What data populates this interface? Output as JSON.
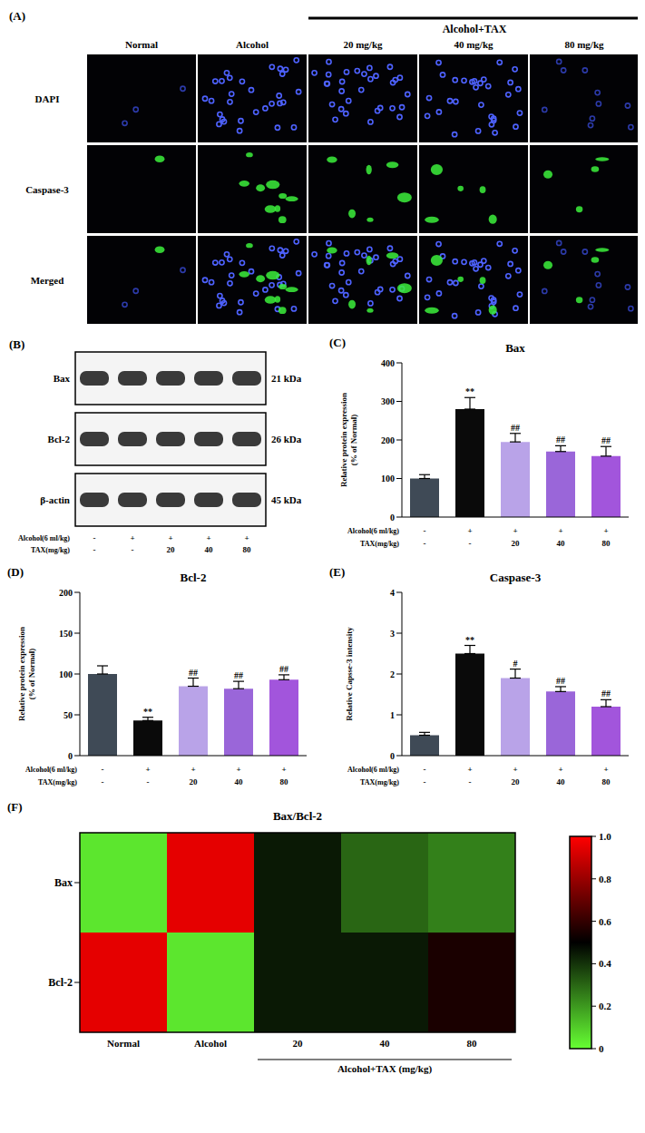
{
  "micrographs": {
    "panel_label": "(A)",
    "group_label": "Alcohol+TAX",
    "columns": [
      "Normal",
      "Alcohol",
      "20 mg/kg",
      "40 mg/kg",
      "80 mg/kg"
    ],
    "rows": [
      "DAPI",
      "Caspase-3",
      "Merged"
    ]
  },
  "western_blot": {
    "panel_label": "(B)",
    "bands": [
      {
        "name": "Bax",
        "size": "21 kDa"
      },
      {
        "name": "Bcl-2",
        "size": "26 kDa"
      },
      {
        "name": "β-actin",
        "size": "45 kDa"
      }
    ]
  },
  "treatments": {
    "rows": [
      {
        "label": "Alcohol(6 ml/kg)",
        "values": [
          "-",
          "+",
          "+",
          "+",
          "+"
        ]
      },
      {
        "label": "TAX(mg/kg)",
        "values": [
          "-",
          "-",
          "20",
          "40",
          "80"
        ]
      }
    ]
  },
  "chart_data": [
    {
      "type": "bar",
      "panel_label": "(C)",
      "title": "Bax",
      "y_label": "Relative protein expression (% of Normal)",
      "categories": [
        null,
        null,
        null,
        null,
        null
      ],
      "values": [
        100,
        280,
        195,
        170,
        158
      ],
      "errors": [
        10,
        30,
        22,
        15,
        25
      ],
      "significance": [
        null,
        "**",
        "##",
        "##",
        "##"
      ],
      "colors": [
        "#3f4a56",
        "#0a0a0a",
        "#b9a3e8",
        "#9a66d9",
        "#a255dc"
      ],
      "ylim": [
        0,
        400
      ],
      "yticks": [
        0,
        100,
        200,
        300,
        400
      ]
    },
    {
      "type": "bar",
      "panel_label": "(D)",
      "title": "Bcl-2",
      "y_label": "Relative protein expression (% of Normal)",
      "categories": [
        null,
        null,
        null,
        null,
        null
      ],
      "values": [
        100,
        43,
        85,
        82,
        93
      ],
      "errors": [
        10,
        4,
        10,
        9,
        6
      ],
      "significance": [
        null,
        "**",
        "##",
        "##",
        "##"
      ],
      "colors": [
        "#3f4a56",
        "#0a0a0a",
        "#b9a3e8",
        "#9a66d9",
        "#a255dc"
      ],
      "ylim": [
        0,
        200
      ],
      "yticks": [
        0,
        50,
        100,
        150,
        200
      ]
    },
    {
      "type": "bar",
      "panel_label": "(E)",
      "title": "Caspase-3",
      "y_label": "Relative Capsse-3 intensity",
      "categories": [
        null,
        null,
        null,
        null,
        null
      ],
      "values": [
        0.5,
        2.5,
        1.9,
        1.57,
        1.2
      ],
      "errors": [
        0.07,
        0.2,
        0.22,
        0.12,
        0.17
      ],
      "significance": [
        null,
        "**",
        "#",
        "##",
        "##"
      ],
      "colors": [
        "#3f4a56",
        "#0a0a0a",
        "#b9a3e8",
        "#9a66d9",
        "#a255dc"
      ],
      "ylim": [
        0,
        4
      ],
      "yticks": [
        0,
        1,
        2,
        3,
        4
      ]
    },
    {
      "type": "heatmap",
      "panel_label": "(F)",
      "title": "Bax/Bcl-2",
      "rows": [
        "Bax",
        "Bcl-2"
      ],
      "columns": [
        "Normal",
        "Alcohol",
        "20",
        "40",
        "80"
      ],
      "group_label": "Alcohol+TAX (mg/kg)",
      "cells": [
        [
          0.05,
          0.95,
          0.45,
          0.3,
          0.25
        ],
        [
          0.95,
          0.05,
          0.45,
          0.45,
          0.55
        ]
      ],
      "colorbar": {
        "range": [
          0,
          1
        ],
        "ticks": [
          0,
          0.2,
          0.4,
          0.6,
          0.8,
          {
            "value": 1,
            "label": "1.0"
          }
        ]
      }
    }
  ]
}
